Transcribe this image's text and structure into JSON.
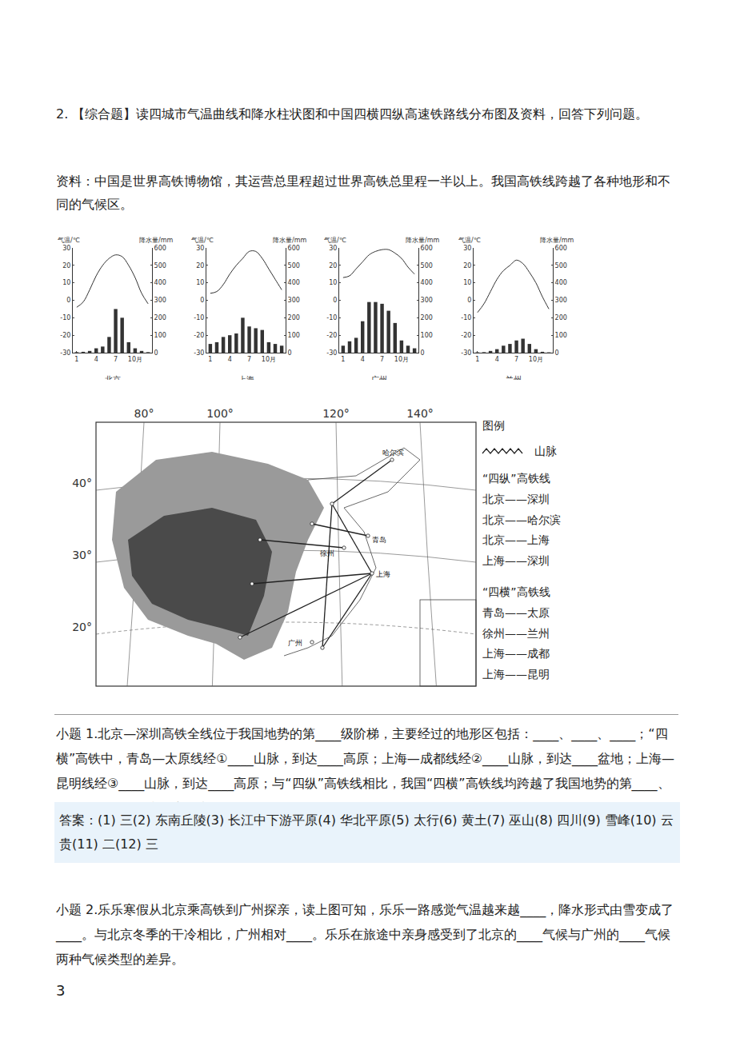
{
  "document": {
    "question": "2. 【综合题】读四城市气温曲线和降水柱状图和中国四横四纵高速铁路线分布图及资料，回答下列问题。",
    "material": "资料：中国是世界高铁博物馆，其运营总里程超过世界高铁总里程一半以上。我国高铁线跨越了各种地形和不同的气候区。",
    "map": {
      "lon_labels": [
        "80°",
        "100°",
        "120°",
        "140°"
      ],
      "lat_labels": [
        "40°",
        "30°",
        "20°"
      ],
      "legend_title": "图例",
      "legend_mountain": "山脉",
      "legend_groups": [
        {
          "title": "“四纵”高铁线",
          "items": [
            "北京——深圳",
            "北京——哈尔滨",
            "北京——上海",
            "上海——深圳"
          ]
        },
        {
          "title": "“四横”高铁线",
          "items": [
            "青岛——太原",
            "徐州——兰州",
            "上海——成都",
            "上海——昆明"
          ]
        }
      ],
      "city_labels": [
        "哈尔滨",
        "青岛",
        "徐州",
        "上海",
        "广州"
      ]
    },
    "subquestion_1": "小题 1.北京—深圳高铁全线位于我国地势的第____级阶梯，主要经过的地形区包括：____、____、____；“四横”高铁中，青岛—太原线经①____山脉，到达____高原；上海—成都线经②____山脉，到达____盆地；上海—昆明线经③____山脉，到达____高原；与“四纵”高铁线相比，我国“四横”高铁线均跨越了我国地势的第____、____级阶梯，修建难度更大。",
    "answer_1": "答案：(1) 三(2) 东南丘陵(3) 长江中下游平原(4) 华北平原(5) 太行(6) 黄土(7) 巫山(8) 四川(9) 雪峰(10) 云贵(11) 二(12) 三",
    "subquestion_2": "小题 2.乐乐寒假从北京乘高铁到广州探亲，读上图可知，乐乐一路感觉气温越来越____，降水形式由雪变成了____。与北京冬季的干冷相比，广州相对____。乐乐在旅途中亲身感受到了北京的____气候与广州的____气候两种气候类型的差异。",
    "page_number": "3"
  },
  "chart_data": [
    {
      "type": "bar_line",
      "title": "北京",
      "categories": [
        "1",
        null,
        null,
        "4",
        null,
        null,
        "7",
        null,
        null,
        "10月",
        null,
        null
      ],
      "ylabel": "气温/℃",
      "y2label": "降水量/mm",
      "series": [
        {
          "type": "line",
          "color": "#333333",
          "values": [
            -4,
            -1,
            6,
            14,
            20,
            24,
            26,
            25,
            20,
            13,
            4,
            -2
          ]
        },
        {
          "type": "bar",
          "axis": "y2",
          "color": "#333333",
          "values": [
            3,
            5,
            10,
            25,
            35,
            90,
            250,
            200,
            60,
            25,
            10,
            3
          ]
        }
      ],
      "ylim": [
        -30,
        30
      ],
      "yticks": [
        -30,
        -20,
        -10,
        0,
        10,
        20,
        30
      ],
      "y2lim": [
        0,
        600
      ],
      "y2ticks": [
        0,
        100,
        200,
        300,
        400,
        500,
        600
      ],
      "grid": false
    },
    {
      "type": "bar_line",
      "title": "上海",
      "categories": [
        "1",
        null,
        null,
        "4",
        null,
        null,
        "7",
        null,
        null,
        "10月",
        null,
        null
      ],
      "ylabel": "气温/℃",
      "y2label": "降水量/mm",
      "series": [
        {
          "type": "line",
          "color": "#333333",
          "values": [
            4,
            5,
            9,
            15,
            20,
            24,
            28,
            28,
            24,
            18,
            12,
            6
          ]
        },
        {
          "type": "bar",
          "axis": "y2",
          "color": "#333333",
          "values": [
            50,
            60,
            90,
            100,
            110,
            200,
            150,
            140,
            130,
            60,
            50,
            40
          ]
        }
      ],
      "ylim": [
        -30,
        30
      ],
      "yticks": [
        -30,
        -20,
        -10,
        0,
        10,
        20,
        30
      ],
      "y2lim": [
        0,
        600
      ],
      "y2ticks": [
        0,
        100,
        200,
        300,
        400,
        500,
        600
      ],
      "grid": false
    },
    {
      "type": "bar_line",
      "title": "广州",
      "categories": [
        "1",
        null,
        null,
        "4",
        null,
        null,
        "7",
        null,
        null,
        "10月",
        null,
        null
      ],
      "ylabel": "气温/℃",
      "y2label": "降水量/mm",
      "series": [
        {
          "type": "line",
          "color": "#333333",
          "values": [
            13,
            14,
            18,
            22,
            26,
            28,
            29,
            29,
            27,
            24,
            19,
            15
          ]
        },
        {
          "type": "bar",
          "axis": "y2",
          "color": "#333333",
          "values": [
            40,
            65,
            85,
            180,
            290,
            290,
            280,
            240,
            170,
            70,
            40,
            25
          ]
        }
      ],
      "ylim": [
        -30,
        30
      ],
      "yticks": [
        -30,
        -20,
        -10,
        0,
        10,
        20,
        30
      ],
      "y2lim": [
        0,
        600
      ],
      "y2ticks": [
        0,
        100,
        200,
        300,
        400,
        500,
        600
      ],
      "grid": false
    },
    {
      "type": "bar_line",
      "title": "兰州",
      "categories": [
        "1",
        null,
        null,
        "4",
        null,
        null,
        "7",
        null,
        null,
        "10月",
        null,
        null
      ],
      "ylabel": "气温/℃",
      "y2label": "降水量/mm",
      "series": [
        {
          "type": "line",
          "color": "#333333",
          "values": [
            -7,
            -2,
            5,
            12,
            17,
            20,
            23,
            21,
            16,
            10,
            2,
            -5
          ]
        },
        {
          "type": "bar",
          "axis": "y2",
          "color": "#333333",
          "values": [
            2,
            3,
            10,
            20,
            40,
            50,
            70,
            80,
            50,
            20,
            5,
            2
          ]
        }
      ],
      "ylim": [
        -30,
        30
      ],
      "yticks": [
        -30,
        -20,
        -10,
        0,
        10,
        20,
        30
      ],
      "y2lim": [
        0,
        600
      ],
      "y2ticks": [
        0,
        100,
        200,
        300,
        400,
        500,
        600
      ],
      "grid": false
    }
  ]
}
